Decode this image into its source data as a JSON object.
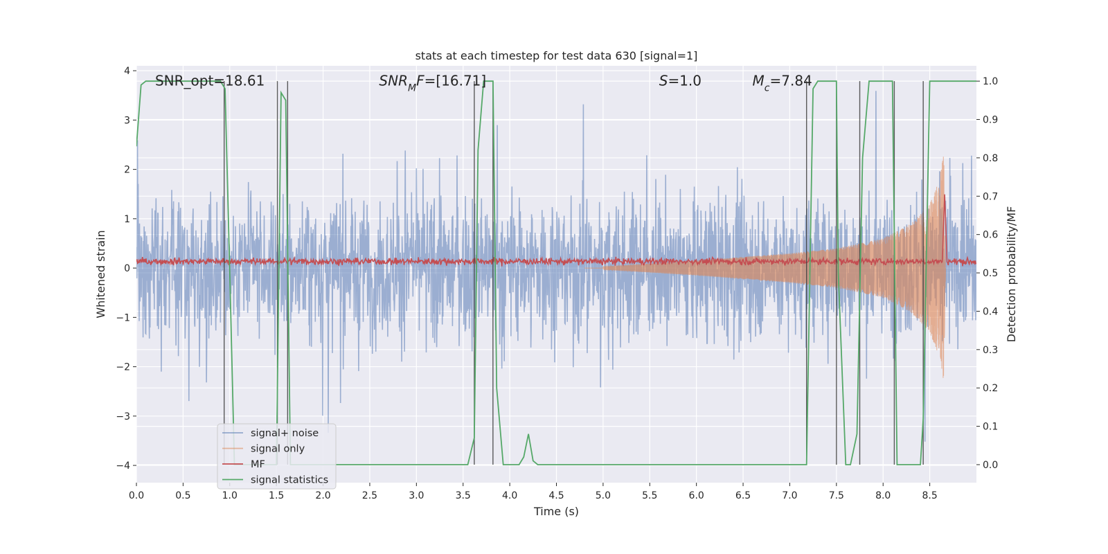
{
  "chart_data": {
    "type": "line",
    "title": "stats at each timestep for test data 630 [signal=1]",
    "xlabel": "Time (s)",
    "ylabel": "Whitened strain",
    "ylabel_right": "Detection probability/MF",
    "xlim": [
      0.0,
      9.0
    ],
    "ylim": [
      -4.35,
      4.1
    ],
    "ylim_right": [
      -0.047,
      1.04
    ],
    "x_ticks": [
      "0.0",
      "0.5",
      "1.0",
      "1.5",
      "2.0",
      "2.5",
      "3.0",
      "3.5",
      "4.0",
      "4.5",
      "5.0",
      "5.5",
      "6.0",
      "6.5",
      "7.0",
      "7.5",
      "8.0",
      "8.5"
    ],
    "y_ticks": [
      "−4",
      "−3",
      "−2",
      "−1",
      "0",
      "1",
      "2",
      "3",
      "4"
    ],
    "y_ticks_right": [
      "0.0",
      "0.1",
      "0.2",
      "0.3",
      "0.4",
      "0.5",
      "0.6",
      "0.7",
      "0.8",
      "0.9",
      "1.0"
    ],
    "grid": true,
    "legend_position": "lower-left",
    "annotations": [
      {
        "text": "SNR_opt=18.61",
        "x": 0.2,
        "y": 3.8
      },
      {
        "text": "SNR_MF=[16.71]",
        "x": 2.6,
        "y": 3.8
      },
      {
        "text": "S=1.0",
        "x": 5.6,
        "y": 3.8
      },
      {
        "text": "M_c=7.84",
        "x": 6.6,
        "y": 3.8
      }
    ],
    "series": [
      {
        "name": "signal+ noise",
        "color": "#4c72b0",
        "axis": "left",
        "description_values": "noise band approx −2.5 to 2.5 with spikes to ±4"
      },
      {
        "name": "signal only",
        "color": "#dd8452",
        "axis": "left",
        "chirp_amplitude": [
          [
            5.0,
            0.03
          ],
          [
            6.0,
            0.15
          ],
          [
            7.0,
            0.3
          ],
          [
            7.5,
            0.4
          ],
          [
            8.0,
            0.6
          ],
          [
            8.3,
            0.9
          ],
          [
            8.5,
            1.3
          ],
          [
            8.6,
            1.8
          ],
          [
            8.65,
            2.3
          ],
          [
            8.67,
            0.0
          ]
        ]
      },
      {
        "name": "MF",
        "color": "#c44e52",
        "axis": "right",
        "baseline": 0.53,
        "peak": {
          "x": 8.66,
          "y": 0.71
        }
      },
      {
        "name": "signal statistics",
        "color": "#55a868",
        "axis": "right",
        "x": [
          0.0,
          0.05,
          0.1,
          0.2,
          0.9,
          0.95,
          1.0,
          1.05,
          1.1,
          1.5,
          1.55,
          1.6,
          1.65,
          1.7,
          1.8,
          2.0,
          3.0,
          3.55,
          3.62,
          3.66,
          3.72,
          3.82,
          3.86,
          3.93,
          4.1,
          4.15,
          4.2,
          4.25,
          4.3,
          4.5,
          5.0,
          6.0,
          7.0,
          7.18,
          7.25,
          7.3,
          7.5,
          7.52,
          7.6,
          7.65,
          7.72,
          7.78,
          7.85,
          8.1,
          8.15,
          8.2,
          8.4,
          8.43,
          8.5,
          9.0
        ],
        "values": [
          0.83,
          0.99,
          1.0,
          1.0,
          1.0,
          0.98,
          0.5,
          0.0,
          0.0,
          0.0,
          0.97,
          0.95,
          0.0,
          0.0,
          0.0,
          0.0,
          0.0,
          0.0,
          0.07,
          0.82,
          1.0,
          1.0,
          0.2,
          0.0,
          0.0,
          0.02,
          0.08,
          0.01,
          0.0,
          0.0,
          0.0,
          0.0,
          0.0,
          0.0,
          0.98,
          1.0,
          1.0,
          0.5,
          0.0,
          0.0,
          0.08,
          0.8,
          1.0,
          1.0,
          0.0,
          0.0,
          0.0,
          0.12,
          1.0,
          1.0
        ]
      }
    ],
    "vlines": [
      0.94,
      1.51,
      1.62,
      3.62,
      3.82,
      7.18,
      7.5,
      7.75,
      8.12,
      8.43
    ]
  }
}
